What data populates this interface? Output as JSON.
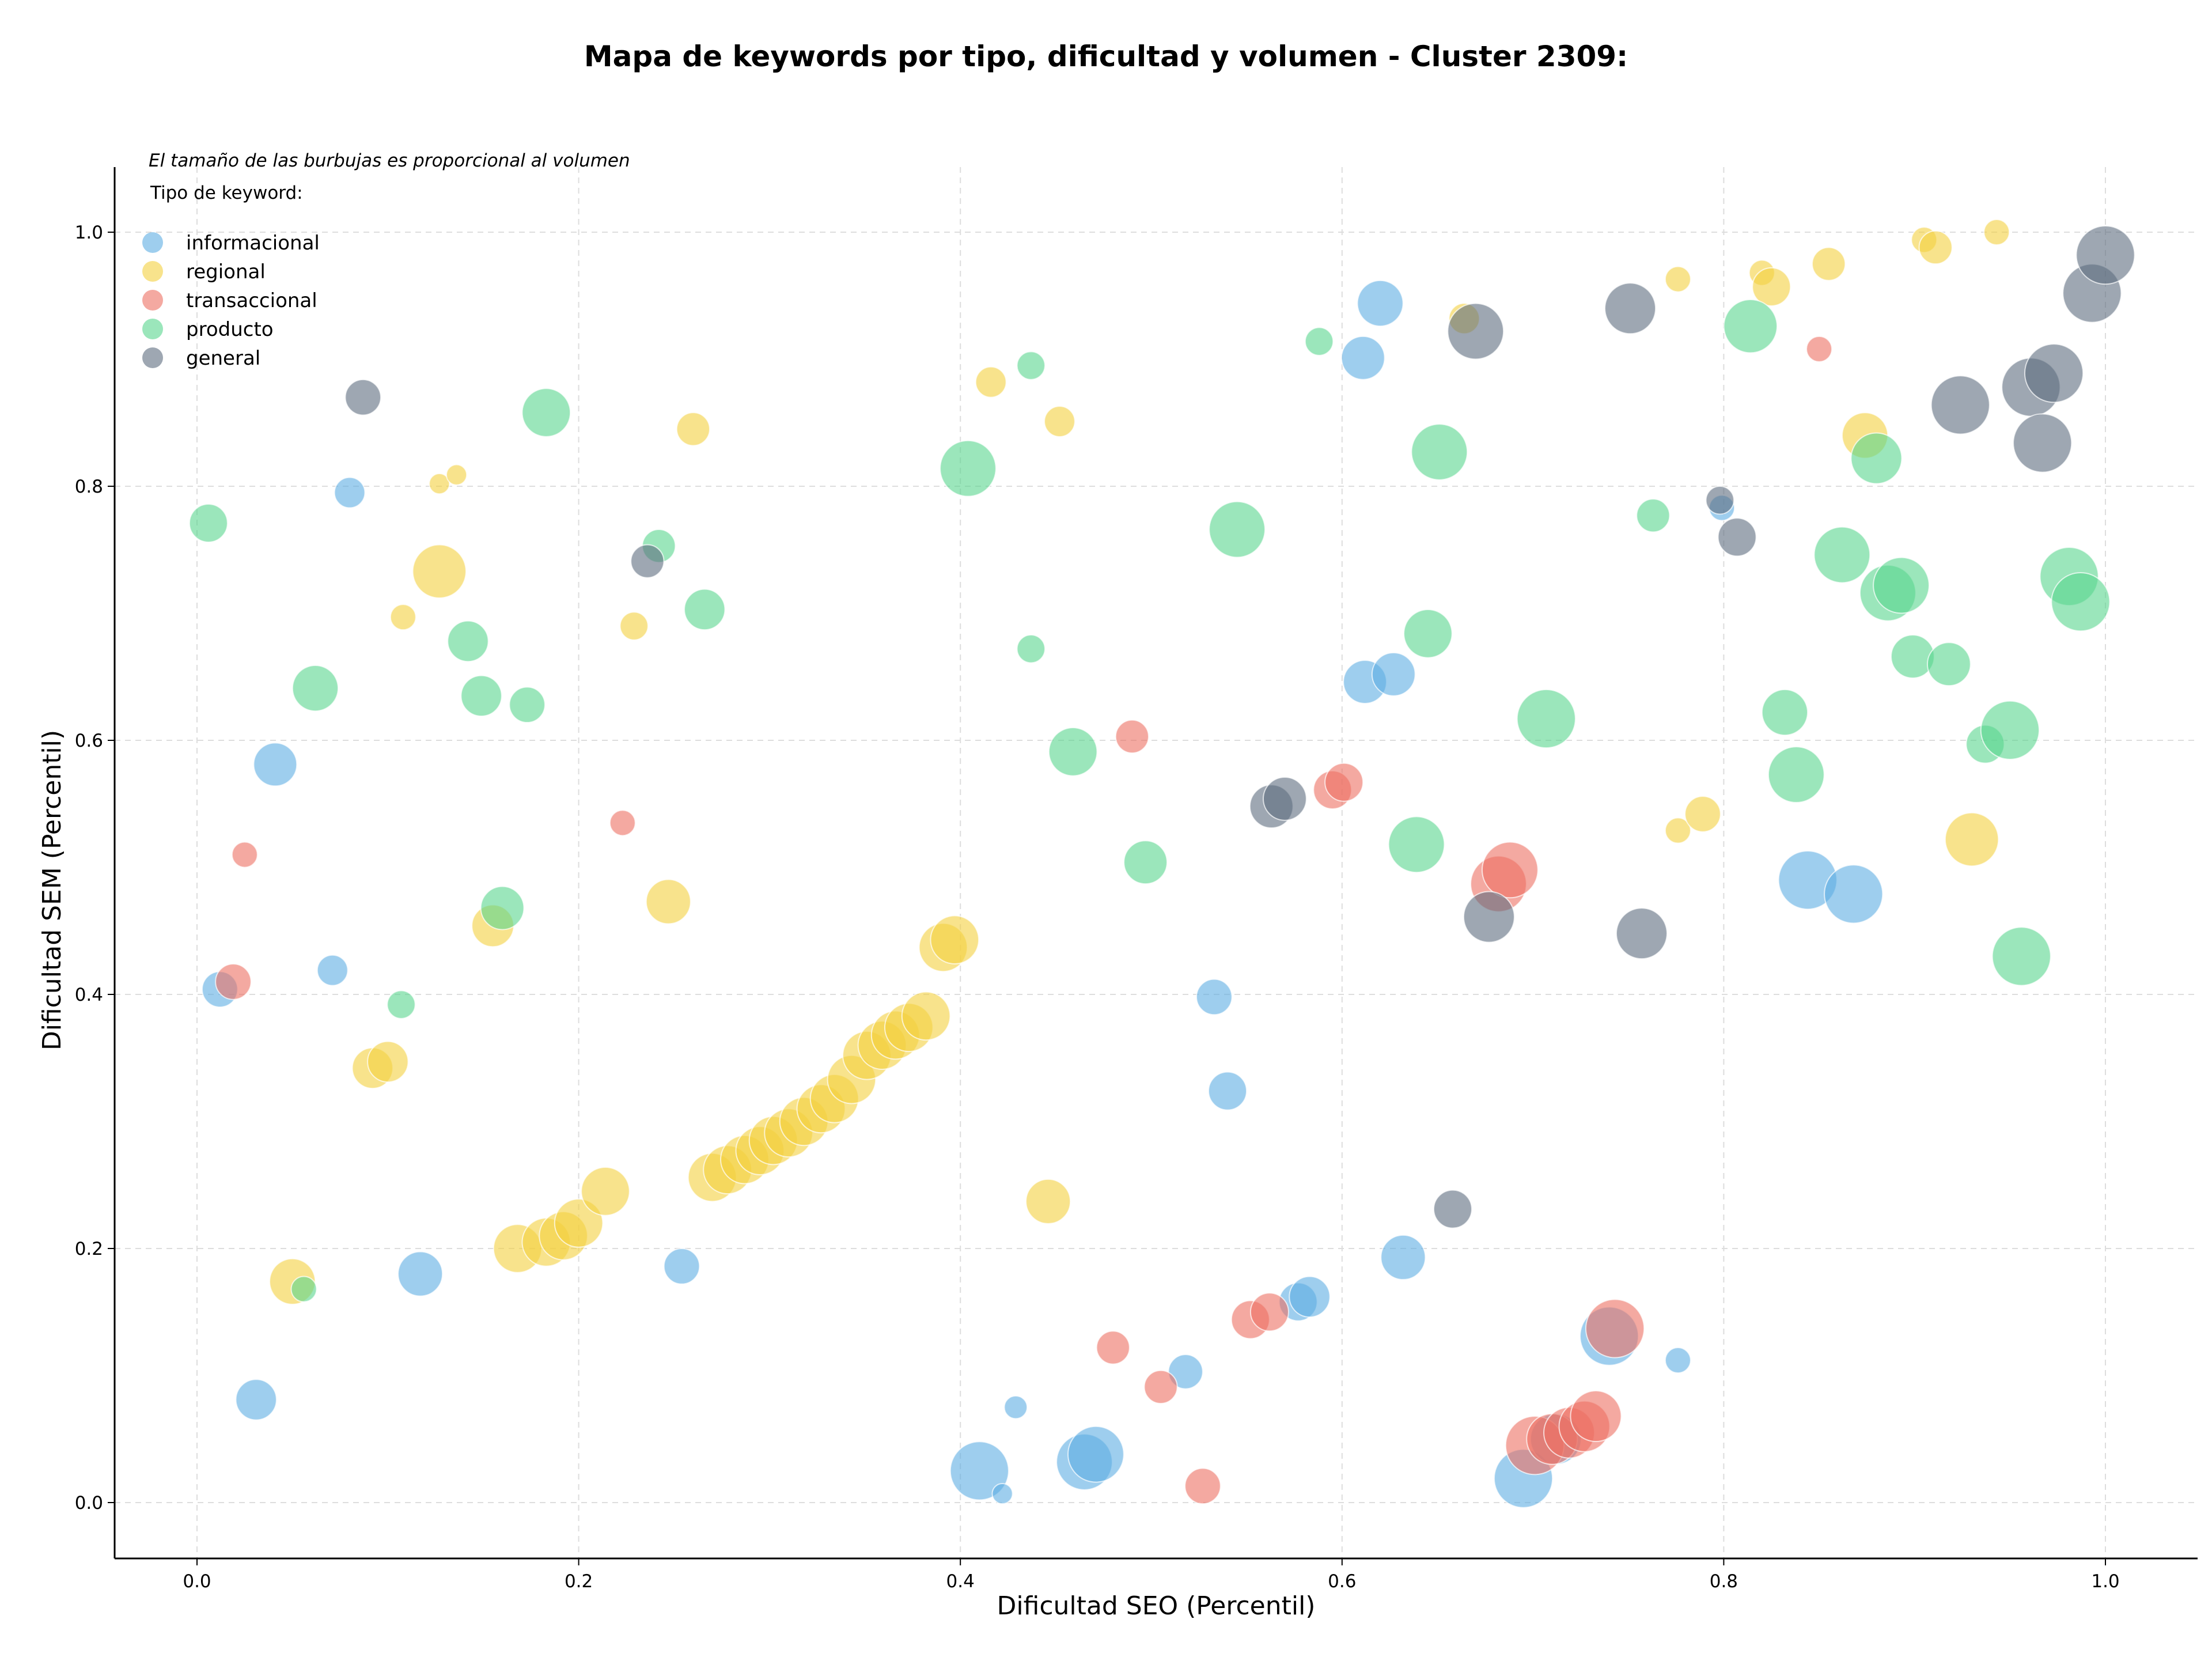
{
  "colors": {
    "informacional": "#5DADE2",
    "regional": "#F4D03F",
    "transaccional": "#EC7063",
    "producto": "#58D68D",
    "general": "#5D6D7E",
    "grid": "#dddddd",
    "axis": "#000000"
  },
  "chart_data": {
    "type": "scatter",
    "title": "Mapa de keywords por tipo, dificultad y volumen - Cluster 2309:",
    "xlabel": "Dificultad SEO (Percentil)",
    "ylabel": "Dificultad SEM (Percentil)",
    "note": "El tamaño de las burbujas es proporcional al volumen",
    "legend_title": "Tipo de keyword:",
    "legend_position": "top-left",
    "xlim": [
      -0.043,
      1.05
    ],
    "ylim": [
      -0.043,
      1.05
    ],
    "xticks": [
      "0.0",
      "0.2",
      "0.4",
      "0.6",
      "0.8",
      "1.0"
    ],
    "yticks": [
      "0.0",
      "0.2",
      "0.4",
      "0.6",
      "0.8",
      "1.0"
    ],
    "xtick_values": [
      0,
      0.2,
      0.4,
      0.6,
      0.8,
      1.0
    ],
    "ytick_values": [
      0,
      0.2,
      0.4,
      0.6,
      0.8,
      1.0
    ],
    "grid": true,
    "size_encoding": "volume",
    "series": [
      {
        "name": "informacional",
        "points": [
          [
            0.012,
            0.404,
            28
          ],
          [
            0.031,
            0.081,
            32
          ],
          [
            0.041,
            0.581,
            34
          ],
          [
            0.071,
            0.419,
            24
          ],
          [
            0.08,
            0.795,
            24
          ],
          [
            0.117,
            0.18,
            35
          ],
          [
            0.254,
            0.186,
            28
          ],
          [
            0.41,
            0.025,
            46
          ],
          [
            0.422,
            0.007,
            16
          ],
          [
            0.429,
            0.075,
            18
          ],
          [
            0.465,
            0.032,
            44
          ],
          [
            0.471,
            0.038,
            44
          ],
          [
            0.518,
            0.103,
            27
          ],
          [
            0.533,
            0.398,
            28
          ],
          [
            0.54,
            0.324,
            30
          ],
          [
            0.577,
            0.158,
            30
          ],
          [
            0.583,
            0.162,
            32
          ],
          [
            0.611,
            0.901,
            34
          ],
          [
            0.62,
            0.944,
            36
          ],
          [
            0.612,
            0.646,
            34
          ],
          [
            0.627,
            0.652,
            34
          ],
          [
            0.632,
            0.193,
            35
          ],
          [
            0.695,
            0.019,
            46
          ],
          [
            0.712,
            0.05,
            40
          ],
          [
            0.74,
            0.131,
            46
          ],
          [
            0.776,
            0.112,
            20
          ],
          [
            0.799,
            0.783,
            20
          ],
          [
            0.844,
            0.49,
            46
          ],
          [
            0.868,
            0.479,
            46
          ]
        ]
      },
      {
        "name": "regional",
        "points": [
          [
            0.05,
            0.174,
            36
          ],
          [
            0.092,
            0.342,
            32
          ],
          [
            0.1,
            0.347,
            32
          ],
          [
            0.108,
            0.697,
            20
          ],
          [
            0.127,
            0.802,
            16
          ],
          [
            0.136,
            0.809,
            16
          ],
          [
            0.127,
            0.733,
            42
          ],
          [
            0.155,
            0.454,
            33
          ],
          [
            0.168,
            0.2,
            38
          ],
          [
            0.183,
            0.205,
            38
          ],
          [
            0.192,
            0.21,
            38
          ],
          [
            0.2,
            0.22,
            38
          ],
          [
            0.214,
            0.245,
            38
          ],
          [
            0.229,
            0.69,
            22
          ],
          [
            0.247,
            0.473,
            35
          ],
          [
            0.26,
            0.845,
            26
          ],
          [
            0.27,
            0.256,
            38
          ],
          [
            0.278,
            0.262,
            38
          ],
          [
            0.287,
            0.27,
            38
          ],
          [
            0.295,
            0.277,
            38
          ],
          [
            0.302,
            0.285,
            38
          ],
          [
            0.31,
            0.291,
            38
          ],
          [
            0.318,
            0.3,
            38
          ],
          [
            0.327,
            0.31,
            38
          ],
          [
            0.334,
            0.318,
            38
          ],
          [
            0.343,
            0.333,
            38
          ],
          [
            0.351,
            0.352,
            38
          ],
          [
            0.359,
            0.36,
            38
          ],
          [
            0.366,
            0.368,
            38
          ],
          [
            0.373,
            0.374,
            38
          ],
          [
            0.382,
            0.383,
            38
          ],
          [
            0.391,
            0.437,
            38
          ],
          [
            0.397,
            0.443,
            38
          ],
          [
            0.416,
            0.882,
            24
          ],
          [
            0.446,
            0.237,
            35
          ],
          [
            0.452,
            0.851,
            24
          ],
          [
            0.664,
            0.932,
            24
          ],
          [
            0.776,
            0.963,
            20
          ],
          [
            0.776,
            0.529,
            20
          ],
          [
            0.789,
            0.542,
            28
          ],
          [
            0.82,
            0.968,
            20
          ],
          [
            0.825,
            0.957,
            30
          ],
          [
            0.855,
            0.975,
            26
          ],
          [
            0.874,
            0.84,
            36
          ],
          [
            0.905,
            0.994,
            20
          ],
          [
            0.911,
            0.988,
            26
          ],
          [
            0.93,
            0.522,
            42
          ],
          [
            0.943,
            1.0,
            20
          ]
        ]
      },
      {
        "name": "transaccional",
        "points": [
          [
            0.019,
            0.41,
            28
          ],
          [
            0.025,
            0.51,
            20
          ],
          [
            0.223,
            0.535,
            20
          ],
          [
            0.48,
            0.122,
            26
          ],
          [
            0.49,
            0.603,
            26
          ],
          [
            0.505,
            0.091,
            26
          ],
          [
            0.527,
            0.013,
            28
          ],
          [
            0.552,
            0.144,
            30
          ],
          [
            0.562,
            0.15,
            30
          ],
          [
            0.595,
            0.561,
            30
          ],
          [
            0.601,
            0.567,
            30
          ],
          [
            0.682,
            0.487,
            44
          ],
          [
            0.688,
            0.498,
            44
          ],
          [
            0.701,
            0.045,
            46
          ],
          [
            0.71,
            0.05,
            40
          ],
          [
            0.719,
            0.055,
            40
          ],
          [
            0.727,
            0.06,
            40
          ],
          [
            0.733,
            0.068,
            40
          ],
          [
            0.743,
            0.137,
            46
          ],
          [
            0.85,
            0.908,
            20
          ]
        ]
      },
      {
        "name": "producto",
        "points": [
          [
            0.006,
            0.771,
            30
          ],
          [
            0.056,
            0.168,
            20
          ],
          [
            0.062,
            0.641,
            36
          ],
          [
            0.107,
            0.392,
            22
          ],
          [
            0.142,
            0.678,
            32
          ],
          [
            0.149,
            0.635,
            32
          ],
          [
            0.16,
            0.468,
            34
          ],
          [
            0.173,
            0.628,
            28
          ],
          [
            0.183,
            0.858,
            38
          ],
          [
            0.242,
            0.753,
            26
          ],
          [
            0.266,
            0.703,
            32
          ],
          [
            0.404,
            0.814,
            44
          ],
          [
            0.437,
            0.672,
            22
          ],
          [
            0.437,
            0.895,
            22
          ],
          [
            0.459,
            0.591,
            38
          ],
          [
            0.497,
            0.504,
            34
          ],
          [
            0.545,
            0.766,
            44
          ],
          [
            0.588,
            0.914,
            22
          ],
          [
            0.639,
            0.518,
            44
          ],
          [
            0.645,
            0.684,
            38
          ],
          [
            0.651,
            0.827,
            44
          ],
          [
            0.707,
            0.617,
            46
          ],
          [
            0.763,
            0.777,
            26
          ],
          [
            0.814,
            0.926,
            42
          ],
          [
            0.832,
            0.622,
            36
          ],
          [
            0.838,
            0.573,
            44
          ],
          [
            0.862,
            0.746,
            44
          ],
          [
            0.88,
            0.822,
            40
          ],
          [
            0.886,
            0.716,
            44
          ],
          [
            0.893,
            0.722,
            44
          ],
          [
            0.899,
            0.666,
            34
          ],
          [
            0.918,
            0.66,
            34
          ],
          [
            0.937,
            0.597,
            30
          ],
          [
            0.95,
            0.608,
            46
          ],
          [
            0.956,
            0.43,
            46
          ],
          [
            0.981,
            0.729,
            46
          ],
          [
            0.987,
            0.709,
            46
          ]
        ]
      },
      {
        "name": "general",
        "points": [
          [
            0.087,
            0.87,
            28
          ],
          [
            0.236,
            0.741,
            26
          ],
          [
            0.563,
            0.548,
            34
          ],
          [
            0.57,
            0.554,
            34
          ],
          [
            0.658,
            0.231,
            30
          ],
          [
            0.67,
            0.922,
            44
          ],
          [
            0.677,
            0.461,
            40
          ],
          [
            0.751,
            0.94,
            40
          ],
          [
            0.757,
            0.448,
            40
          ],
          [
            0.798,
            0.789,
            22
          ],
          [
            0.807,
            0.76,
            30
          ],
          [
            0.924,
            0.864,
            46
          ],
          [
            0.961,
            0.878,
            46
          ],
          [
            0.967,
            0.834,
            46
          ],
          [
            0.973,
            0.889,
            46
          ],
          [
            0.993,
            0.952,
            46
          ],
          [
            1.0,
            0.982,
            46
          ]
        ]
      }
    ]
  }
}
